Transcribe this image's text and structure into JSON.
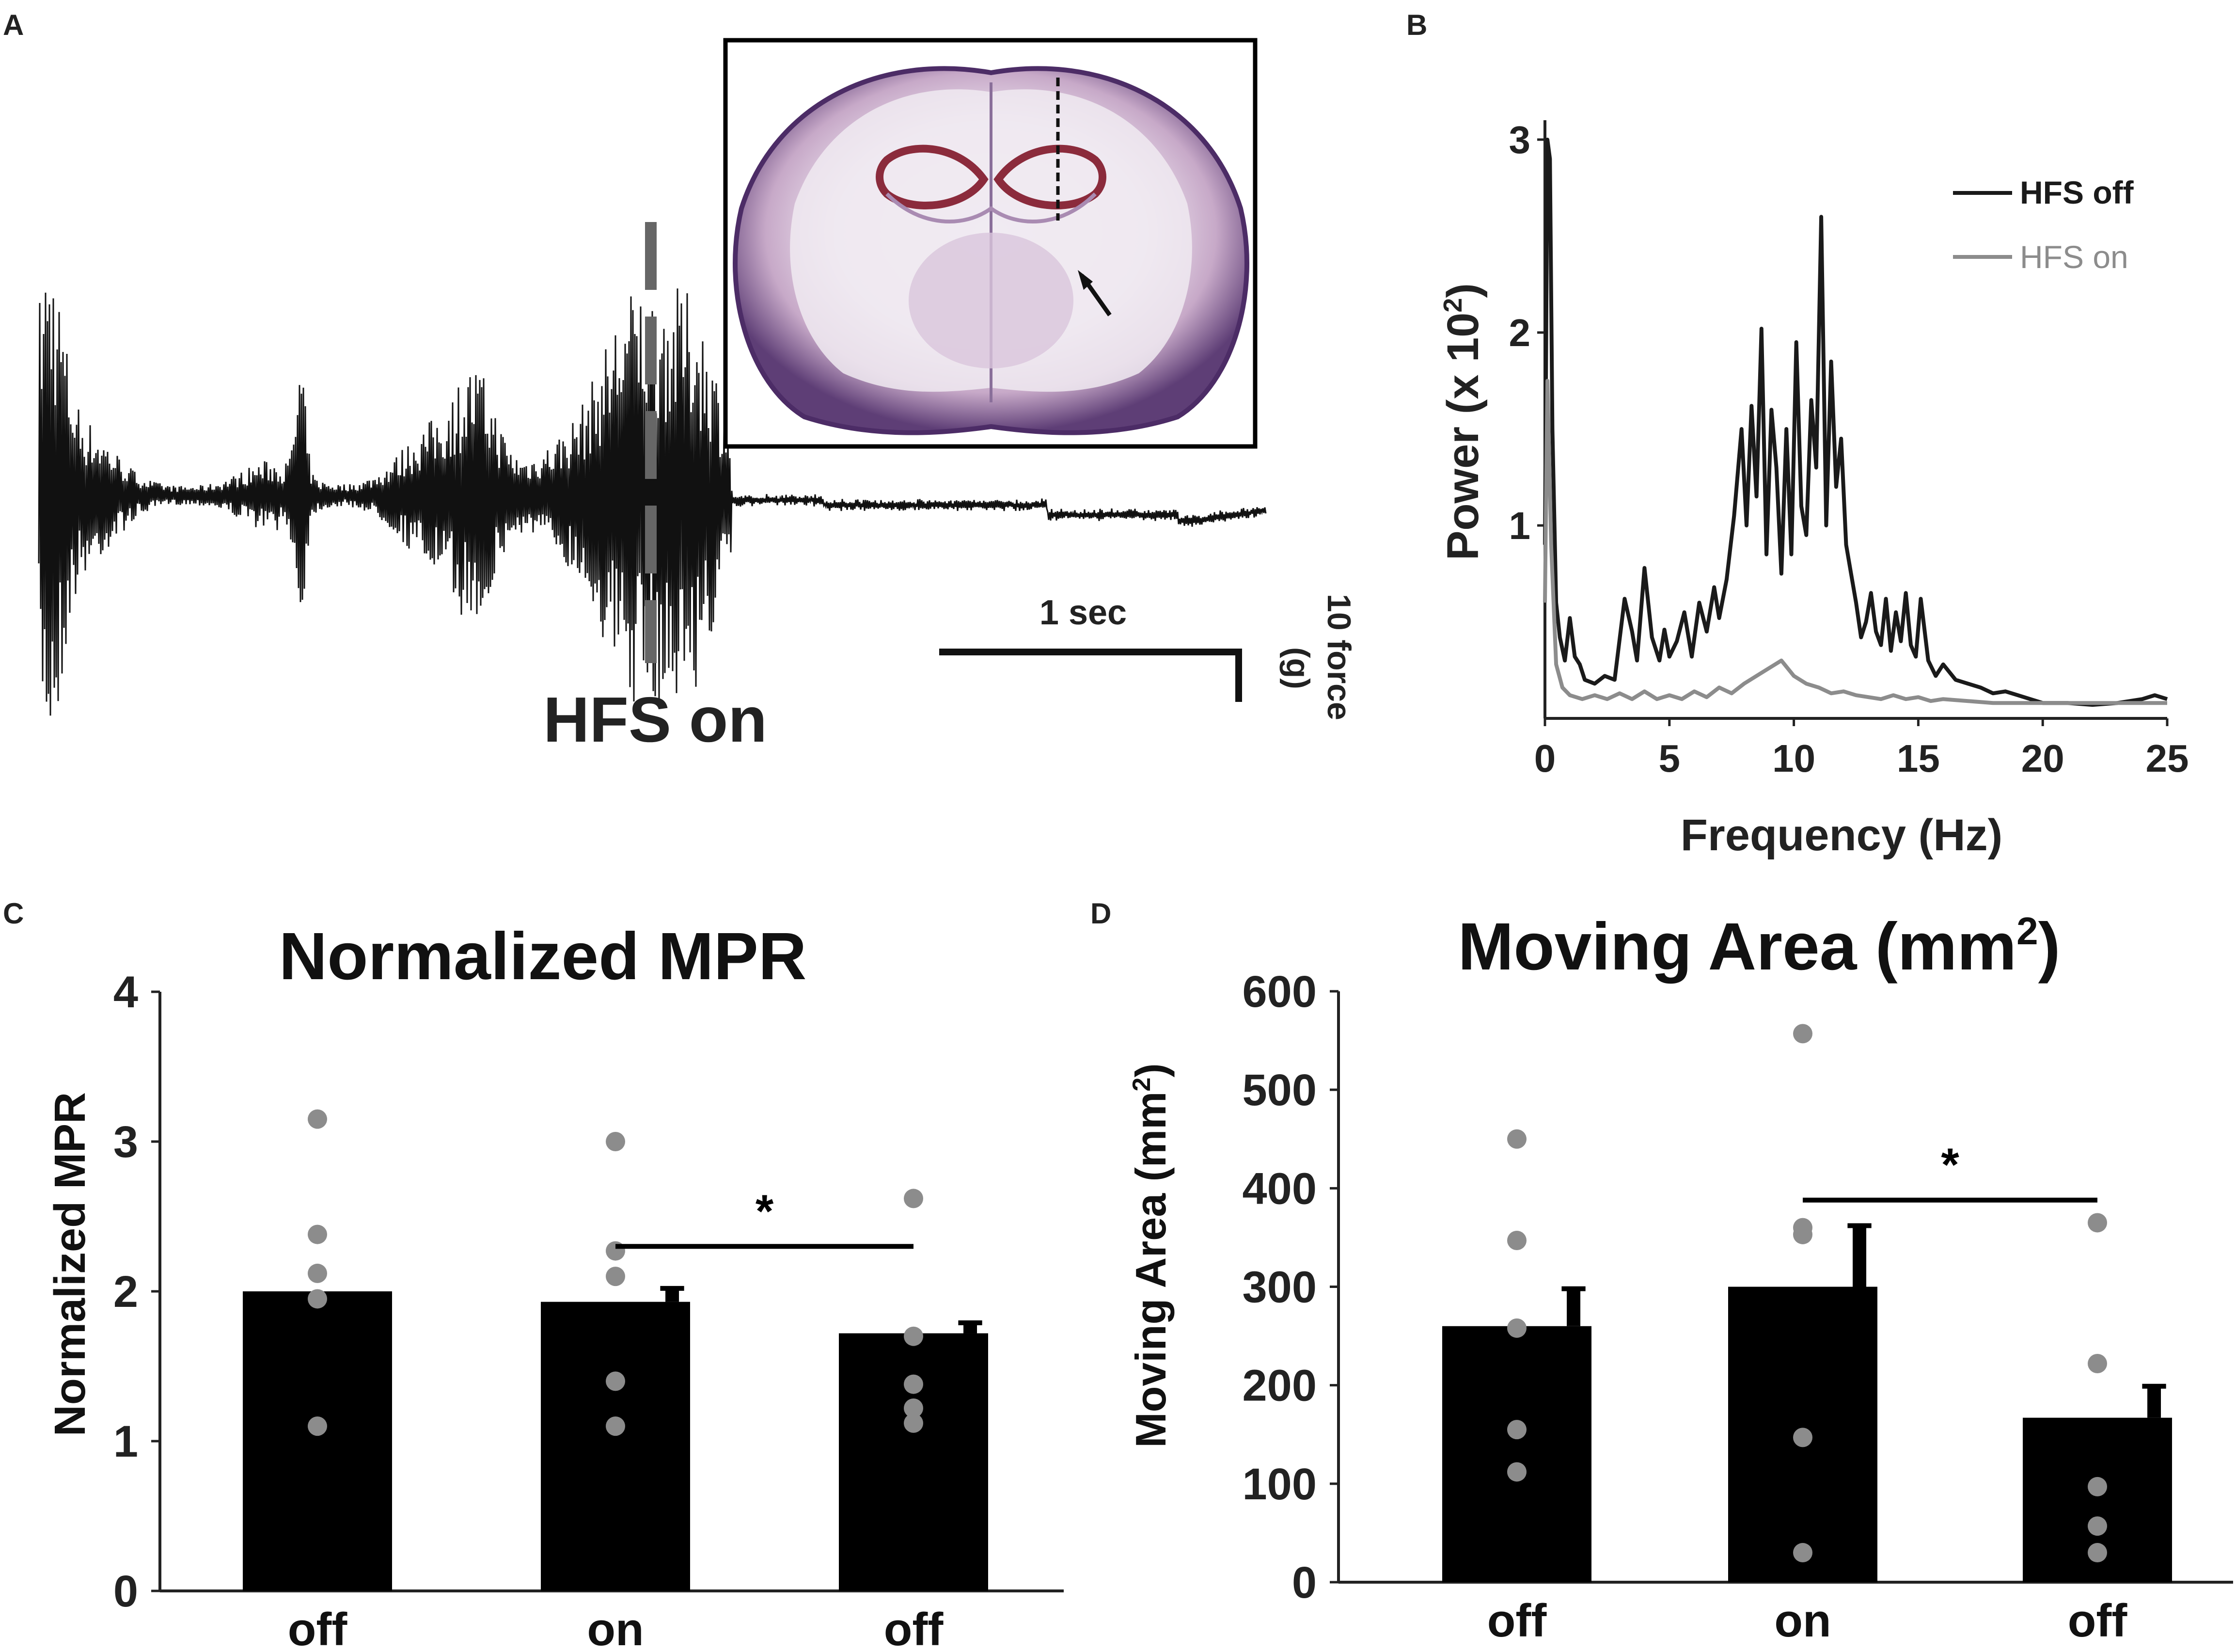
{
  "panels": {
    "a": {
      "letter": "A",
      "hfs_label": "HFS on",
      "time_scale_label": "1 sec",
      "force_scale_label": "10 force",
      "force_scale_unit": "(g)",
      "inset_image": "coronal brain section with arrow marking electrode track"
    },
    "b": {
      "letter": "B"
    },
    "c": {
      "letter": "C"
    },
    "d": {
      "letter": "D"
    }
  },
  "chart_data": [
    {
      "id": "panel-b",
      "type": "line",
      "title": "",
      "xlabel": "Frequency (Hz)",
      "ylabel_main": "Power (x 10",
      "ylabel_sup": "2",
      "ylabel_close": ")",
      "xlim": [
        0,
        25
      ],
      "ylim": [
        0,
        3
      ],
      "xticks": [
        "0",
        "5",
        "10",
        "15",
        "20",
        "25"
      ],
      "yticks": [
        "1",
        "2",
        "3"
      ],
      "legend_position": "top-right",
      "series": [
        {
          "name": "HFS off",
          "color": "#1a1a1a",
          "x": [
            0,
            0.1,
            0.2,
            0.3,
            0.45,
            0.6,
            0.8,
            1.0,
            1.2,
            1.4,
            1.6,
            2.0,
            2.4,
            2.8,
            3.2,
            3.5,
            3.7,
            4.0,
            4.3,
            4.6,
            4.8,
            5.0,
            5.3,
            5.6,
            5.9,
            6.2,
            6.5,
            6.8,
            7.0,
            7.3,
            7.6,
            7.9,
            8.1,
            8.3,
            8.5,
            8.7,
            8.9,
            9.1,
            9.3,
            9.5,
            9.7,
            9.9,
            10.1,
            10.3,
            10.5,
            10.7,
            10.9,
            11.1,
            11.3,
            11.5,
            11.7,
            11.9,
            12.1,
            12.3,
            12.5,
            12.7,
            12.9,
            13.1,
            13.3,
            13.5,
            13.7,
            13.9,
            14.1,
            14.3,
            14.5,
            14.7,
            14.9,
            15.1,
            15.4,
            15.7,
            16.0,
            16.5,
            17.0,
            17.5,
            18.0,
            18.5,
            19.0,
            19.5,
            20.0,
            21.0,
            22.0,
            23.0,
            24.0,
            24.5,
            25.0
          ],
          "y": [
            0.9,
            3.0,
            2.9,
            1.5,
            0.6,
            0.42,
            0.3,
            0.52,
            0.32,
            0.28,
            0.2,
            0.18,
            0.22,
            0.2,
            0.62,
            0.45,
            0.3,
            0.78,
            0.42,
            0.3,
            0.46,
            0.32,
            0.4,
            0.55,
            0.32,
            0.6,
            0.45,
            0.68,
            0.52,
            0.72,
            1.05,
            1.5,
            1.0,
            1.62,
            1.15,
            2.02,
            0.85,
            1.6,
            1.3,
            0.75,
            1.5,
            0.85,
            1.95,
            1.1,
            0.95,
            1.65,
            1.3,
            2.6,
            1.0,
            1.85,
            1.2,
            1.45,
            0.9,
            0.75,
            0.6,
            0.42,
            0.5,
            0.65,
            0.45,
            0.38,
            0.62,
            0.35,
            0.55,
            0.4,
            0.65,
            0.38,
            0.32,
            0.62,
            0.3,
            0.22,
            0.28,
            0.2,
            0.18,
            0.16,
            0.13,
            0.14,
            0.12,
            0.1,
            0.08,
            0.08,
            0.07,
            0.08,
            0.1,
            0.12,
            0.1
          ]
        },
        {
          "name": "HFS on",
          "color": "#8c8c8c",
          "x": [
            0,
            0.1,
            0.25,
            0.45,
            0.7,
            1.0,
            1.5,
            2.0,
            2.5,
            3.0,
            3.5,
            4.0,
            4.5,
            5.0,
            5.5,
            6.0,
            6.5,
            7.0,
            7.5,
            8.0,
            8.5,
            9.0,
            9.5,
            10.0,
            10.5,
            11.0,
            11.5,
            12.0,
            12.5,
            13.0,
            13.5,
            14.0,
            14.5,
            15.0,
            15.5,
            16.0,
            17.0,
            18.0,
            19.0,
            20.0,
            22.0,
            24.0,
            25.0
          ],
          "y": [
            0.6,
            1.75,
            0.9,
            0.28,
            0.16,
            0.12,
            0.1,
            0.12,
            0.1,
            0.13,
            0.1,
            0.14,
            0.1,
            0.12,
            0.1,
            0.14,
            0.11,
            0.16,
            0.13,
            0.18,
            0.22,
            0.26,
            0.3,
            0.22,
            0.18,
            0.16,
            0.13,
            0.14,
            0.12,
            0.11,
            0.1,
            0.12,
            0.1,
            0.11,
            0.09,
            0.1,
            0.09,
            0.08,
            0.08,
            0.08,
            0.08,
            0.08,
            0.08
          ]
        }
      ]
    },
    {
      "id": "panel-c",
      "type": "bar",
      "title": "Normalized MPR",
      "ylabel": "Normalized MPR",
      "categories": [
        "off",
        "on",
        "off"
      ],
      "values": [
        2.0,
        1.93,
        1.72
      ],
      "errors": [
        0.0,
        0.09,
        0.07
      ],
      "ylim": [
        0,
        4
      ],
      "yticks": [
        "0",
        "1",
        "2",
        "3",
        "4"
      ],
      "points": [
        [
          3.15,
          2.38,
          2.12,
          1.95,
          1.1
        ],
        [
          3.0,
          2.27,
          2.1,
          1.4,
          1.1
        ],
        [
          2.62,
          1.7,
          1.38,
          1.22,
          1.12
        ]
      ],
      "significance": {
        "from": 1,
        "to": 2,
        "level_value": 2.3,
        "label": "*"
      },
      "bar_color": "#000000",
      "point_color": "#8c8c8c"
    },
    {
      "id": "panel-d",
      "type": "bar",
      "title_main": "Moving Area (mm",
      "title_sup": "2",
      "title_close": ")",
      "ylabel_main": "Moving Area (mm",
      "ylabel_sup": "2",
      "ylabel_close": ")",
      "categories": [
        "off",
        "on",
        "off"
      ],
      "values": [
        260,
        300,
        167
      ],
      "errors": [
        38,
        62,
        32
      ],
      "ylim": [
        0,
        600
      ],
      "yticks": [
        "0",
        "100",
        "200",
        "300",
        "400",
        "500",
        "600"
      ],
      "points": [
        [
          450,
          347,
          258,
          155,
          112
        ],
        [
          557,
          360,
          353,
          147,
          30
        ],
        [
          365,
          222,
          97,
          57,
          30
        ]
      ],
      "significance": {
        "from": 1,
        "to": 2,
        "level_value": 388,
        "label": "*"
      },
      "bar_color": "#000000",
      "point_color": "#8c8c8c"
    }
  ]
}
